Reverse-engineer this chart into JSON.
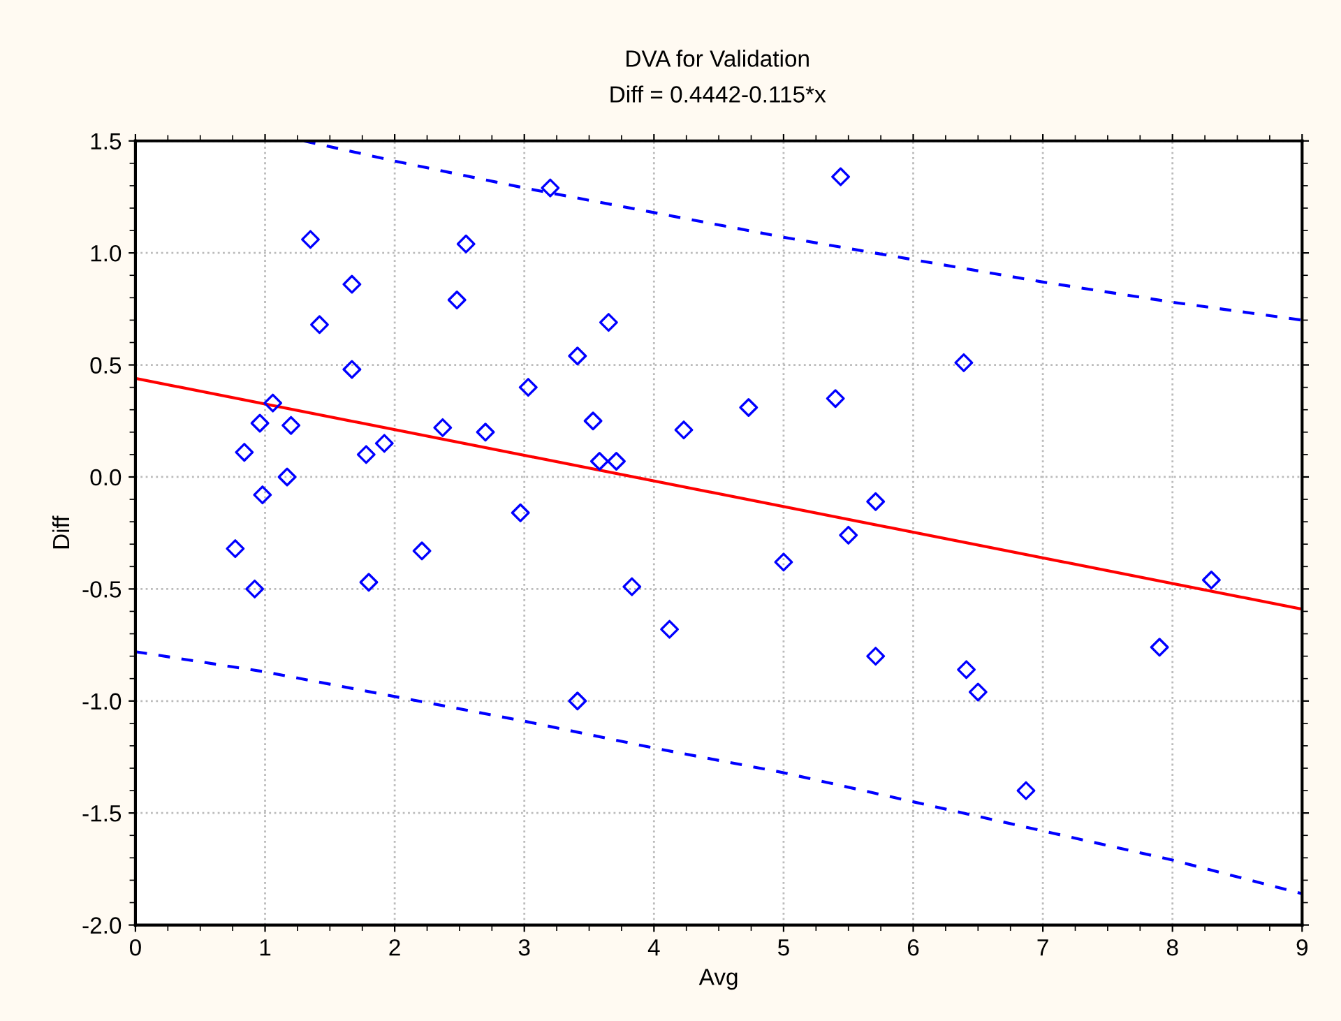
{
  "chart_data": {
    "type": "scatter",
    "title": "DVA for Validation",
    "subtitle": "Diff = 0.4442-0.115*x",
    "xlabel": "Avg",
    "ylabel": "Diff",
    "xlim": [
      0,
      9
    ],
    "ylim": [
      -2.0,
      1.5
    ],
    "xticks": [
      0,
      1,
      2,
      3,
      4,
      5,
      6,
      7,
      8,
      9
    ],
    "yticks": [
      {
        "value": -2.0,
        "label": "-2.0"
      },
      {
        "value": -1.5,
        "label": "-1.5"
      },
      {
        "value": -1.0,
        "label": "-1.0"
      },
      {
        "value": -0.5,
        "label": "-0.5"
      },
      {
        "value": 0.0,
        "label": "0.0"
      },
      {
        "value": 0.5,
        "label": "0.5"
      },
      {
        "value": 1.0,
        "label": "1.0"
      },
      {
        "value": 1.5,
        "label": "1.5"
      }
    ],
    "grid": true,
    "legend": false,
    "series": [
      {
        "color": "#0000ff",
        "marker": "diamond",
        "x": [
          1.35,
          1.67,
          2.48,
          2.55,
          1.42,
          1.67,
          1.06,
          0.96,
          1.2,
          0.84,
          1.78,
          1.92,
          2.37,
          2.7,
          1.17,
          0.98,
          2.97,
          3.03,
          0.77,
          2.21,
          0.92,
          1.8,
          3.2,
          5.44,
          3.65,
          3.41,
          3.53,
          3.58,
          3.71,
          4.23,
          4.73,
          5.4,
          5.71,
          5.5,
          5.0,
          3.83,
          4.12,
          3.41,
          5.71,
          6.39,
          6.41,
          6.5,
          6.87,
          7.9,
          8.3
        ],
        "values": [
          1.06,
          0.86,
          0.79,
          1.04,
          0.68,
          0.48,
          0.33,
          0.24,
          0.23,
          0.11,
          0.1,
          0.15,
          0.22,
          0.2,
          0.0,
          -0.08,
          -0.16,
          0.4,
          -0.32,
          -0.33,
          -0.5,
          -0.47,
          1.29,
          1.34,
          0.69,
          0.54,
          0.25,
          0.07,
          0.07,
          0.21,
          0.31,
          0.35,
          -0.11,
          -0.26,
          -0.38,
          -0.49,
          -0.68,
          -1.0,
          -0.8,
          0.51,
          -0.86,
          -0.96,
          -1.4,
          -0.76,
          -0.46
        ]
      },
      {
        "type": "line",
        "color": "#ff0000",
        "marker": "none",
        "line_style": "solid",
        "x": [
          0,
          9
        ],
        "values": [
          0.44,
          -0.59
        ]
      },
      {
        "type": "line",
        "color": "#0000ff",
        "marker": "none",
        "line_style": "dashed",
        "x": [
          1.3,
          2,
          3,
          4,
          5,
          6,
          7,
          8,
          9
        ],
        "values": [
          1.5,
          1.41,
          1.29,
          1.18,
          1.07,
          0.97,
          0.87,
          0.78,
          0.7
        ]
      },
      {
        "type": "line",
        "color": "#0000ff",
        "marker": "none",
        "line_style": "dashed",
        "x": [
          0,
          1,
          2,
          3,
          4,
          5,
          6,
          7,
          8,
          9
        ],
        "values": [
          -0.78,
          -0.87,
          -0.98,
          -1.09,
          -1.21,
          -1.32,
          -1.45,
          -1.58,
          -1.71,
          -1.86
        ]
      }
    ]
  }
}
